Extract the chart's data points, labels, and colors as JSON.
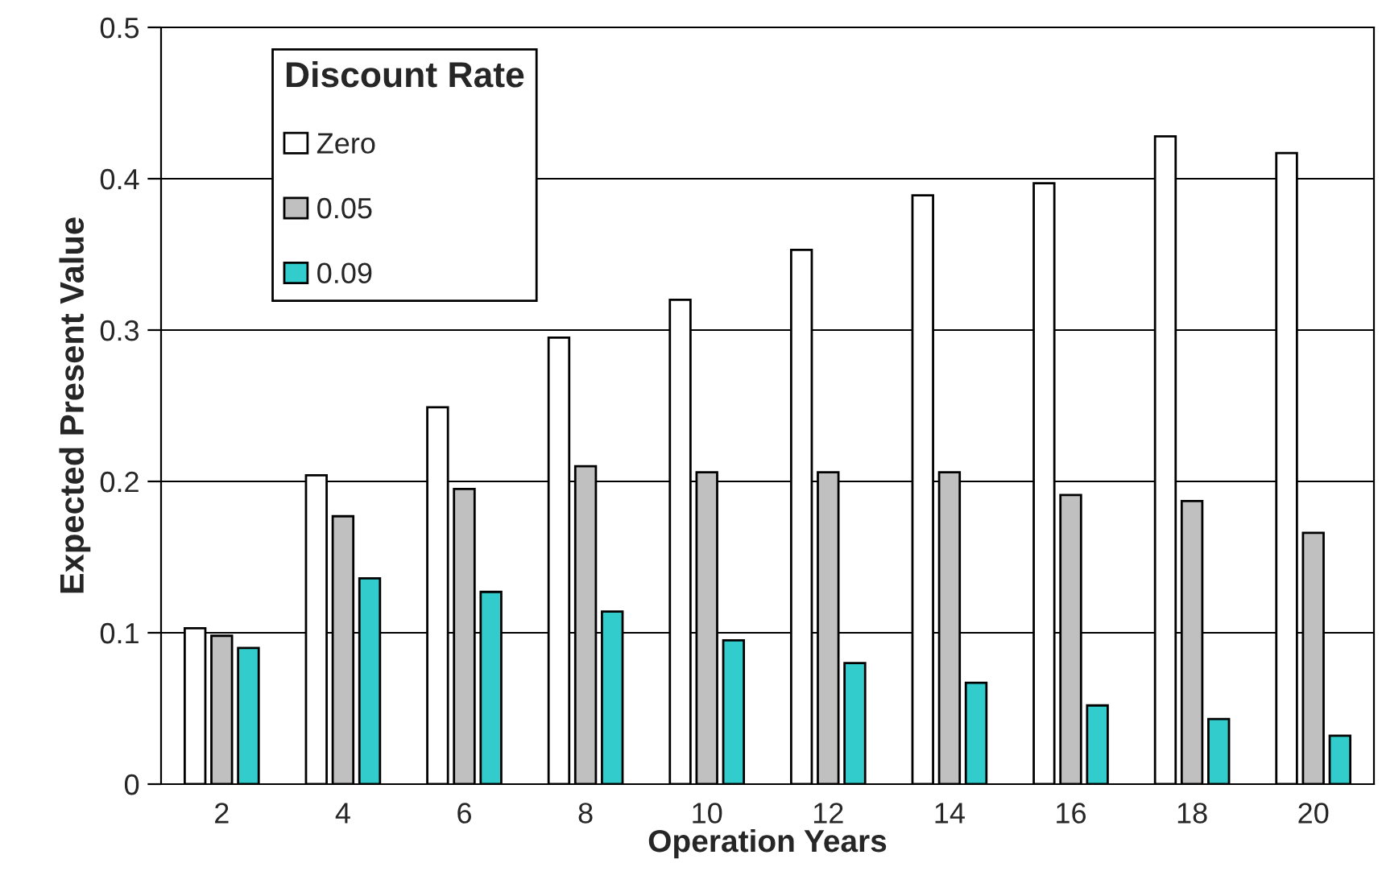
{
  "chart_data": {
    "type": "bar",
    "xlabel": "Operation Years",
    "ylabel": "Expected Present Value",
    "legend_title": "Discount Rate",
    "categories": [
      "2",
      "4",
      "6",
      "8",
      "10",
      "12",
      "14",
      "16",
      "18",
      "20"
    ],
    "series": [
      {
        "name": "Zero",
        "color": "#ffffff",
        "values": [
          0.103,
          0.204,
          0.249,
          0.295,
          0.32,
          0.353,
          0.389,
          0.397,
          0.428,
          0.417
        ]
      },
      {
        "name": "0.05",
        "color": "#c0c0c0",
        "values": [
          0.098,
          0.177,
          0.195,
          0.21,
          0.206,
          0.206,
          0.206,
          0.191,
          0.187,
          0.166
        ]
      },
      {
        "name": "0.09",
        "color": "#33cccc",
        "values": [
          0.09,
          0.136,
          0.127,
          0.114,
          0.095,
          0.08,
          0.067,
          0.052,
          0.043,
          0.032
        ]
      }
    ],
    "ylim": [
      0,
      0.5
    ],
    "yticks": [
      {
        "value": 0,
        "label": "0"
      },
      0.1,
      0.2,
      0.3,
      0.4,
      0.5
    ],
    "grid": "y",
    "legend": "top left"
  }
}
